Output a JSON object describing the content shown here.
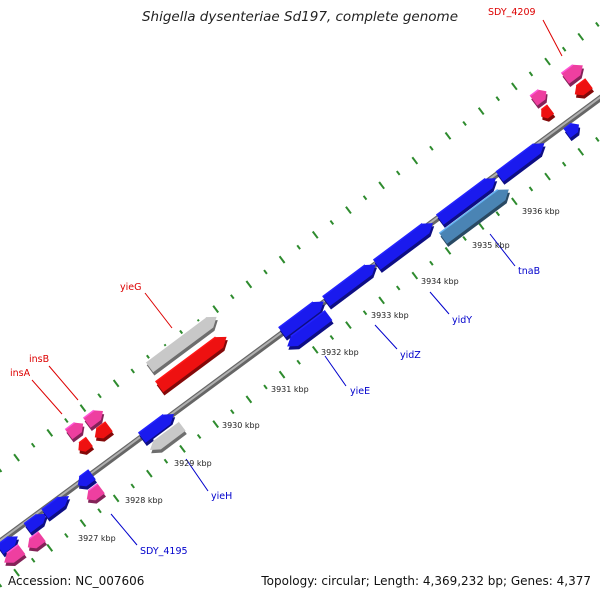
{
  "title": "Shigella dysenteriae Sd197, complete genome",
  "footer": {
    "accession": "Accession: NC_007606",
    "summary": "Topology: circular; Length: 4,369,232 bp; Genes: 4,377"
  },
  "colors": {
    "backbone": "#888888",
    "tick": "#2e8b2e",
    "gene_blue": "#1a1aee",
    "gene_red": "#ee1111",
    "gene_pink": "#ee3fa0",
    "gene_grey": "#c8c8c8",
    "gene_steel": "#4a84b4",
    "label_blue": "#0000cc",
    "label_red": "#dd0000"
  },
  "scale": {
    "unit": "kbp",
    "ticks": [
      "3927 kbp",
      "3928 kbp",
      "3929 kbp",
      "3930 kbp",
      "3931 kbp",
      "3932 kbp",
      "3933 kbp",
      "3934 kbp",
      "3935 kbp",
      "3936 kbp"
    ]
  },
  "gene_labels": [
    {
      "name": "SDY_4209",
      "color": "red"
    },
    {
      "name": "yieG",
      "color": "red"
    },
    {
      "name": "insB",
      "color": "red"
    },
    {
      "name": "insA",
      "color": "red"
    },
    {
      "name": "tnaB",
      "color": "blue"
    },
    {
      "name": "yidY",
      "color": "blue"
    },
    {
      "name": "yidZ",
      "color": "blue"
    },
    {
      "name": "yieE",
      "color": "blue"
    },
    {
      "name": "yieH",
      "color": "blue"
    },
    {
      "name": "SDY_4195",
      "color": "blue"
    }
  ]
}
